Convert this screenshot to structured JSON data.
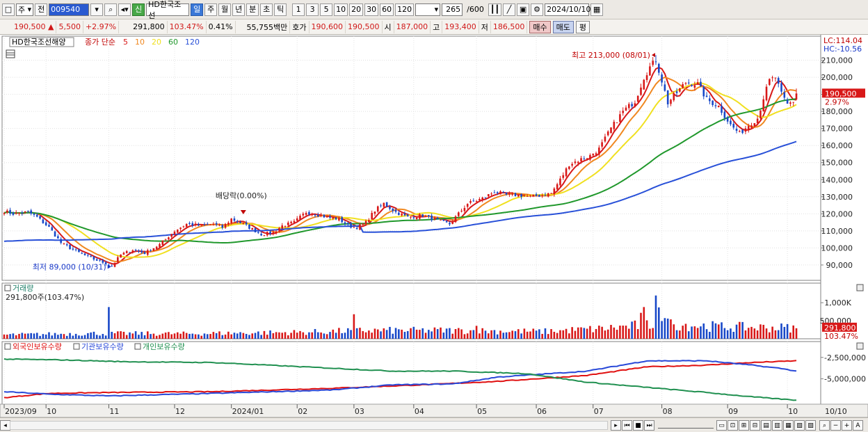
{
  "toolbar": {
    "period_sel": "주",
    "prev_label": "전",
    "code": "009540",
    "shin": "신",
    "stock_name": "HD한국조선",
    "periods": [
      "일",
      "주",
      "월",
      "년",
      "분",
      "초",
      "틱"
    ],
    "active_period": "일",
    "intervals": [
      "1",
      "3",
      "5",
      "10",
      "20",
      "30",
      "60",
      "120"
    ],
    "count": "265",
    "count_total": "/600",
    "date": "2024/10/10"
  },
  "quote": {
    "price": "190,500",
    "arrow": "▲",
    "change": "5,500",
    "change_pct": "+2.97%",
    "volume": "291,800",
    "volume_ratio": "103.47%",
    "turnover": "0.41%",
    "amount": "55,755백만",
    "bid_label": "호가",
    "bid": "190,600",
    "ask": "190,500",
    "open_label": "시",
    "open": "187,000",
    "high_label": "고",
    "high": "193,400",
    "low_label": "저",
    "low": "186,500",
    "buy": "매수",
    "sell": "매도",
    "pyeong": "평"
  },
  "price_panel": {
    "name": "HD한국조선해양",
    "ma_label": "종가 단순",
    "ma_periods": [
      "5",
      "10",
      "20",
      "60",
      "120"
    ],
    "lc": "LC:114.04",
    "hc": "HC:-10.56",
    "high_note": "최고 213,000 (08/01)",
    "low_note": "최저 89,000 (10/31)",
    "div_note": "배당락(0.00%)",
    "last_price_tag": "190,500",
    "last_pct_tag": "2.97%"
  },
  "volume_panel": {
    "title": "거래량",
    "value": "291,800주(103.47%)",
    "tag": "291,800",
    "tag_pct": "103.47%"
  },
  "holding_panel": {
    "legend": [
      "외국인보유수량",
      "기관보유수량",
      "개인보유수량"
    ]
  },
  "x_labels": [
    {
      "t": "2023/09",
      "d": 0
    },
    {
      "t": "10",
      "d": 14
    },
    {
      "t": "11",
      "d": 35
    },
    {
      "t": "12",
      "d": 57
    },
    {
      "t": "2024/01",
      "d": 76
    },
    {
      "t": "02",
      "d": 98
    },
    {
      "t": "03",
      "d": 117
    },
    {
      "t": "04",
      "d": 137
    },
    {
      "t": "05",
      "d": 158
    },
    {
      "t": "06",
      "d": 178
    },
    {
      "t": "07",
      "d": 197
    },
    {
      "t": "08",
      "d": 220
    },
    {
      "t": "09",
      "d": 242
    },
    {
      "t": "10",
      "d": 262
    }
  ],
  "last_x_label": "10/10",
  "chart_data": {
    "type": "line",
    "title": "HD한국조선해양",
    "price_axis": {
      "ticks": [
        90000,
        100000,
        110000,
        120000,
        130000,
        140000,
        150000,
        160000,
        170000,
        180000,
        190000,
        200000,
        210000
      ],
      "range": [
        81000,
        220000
      ]
    },
    "volume_axis": {
      "ticks": [
        500000,
        1000000
      ],
      "tick_labels": [
        "500,000",
        "1,000K"
      ],
      "range": [
        0,
        1350000
      ]
    },
    "holding_axis": {
      "ticks": [
        -2500000,
        -5000000
      ],
      "tick_labels": [
        "-2,500,000",
        "-5,000,000"
      ],
      "range": [
        -7800000,
        -1300000
      ]
    },
    "close_keys": [
      [
        0,
        121500
      ],
      [
        3,
        120000
      ],
      [
        8,
        121000
      ],
      [
        11,
        118000
      ],
      [
        15,
        112000
      ],
      [
        19,
        103000
      ],
      [
        24,
        98000
      ],
      [
        29,
        94000
      ],
      [
        34,
        91000
      ],
      [
        36,
        89500
      ],
      [
        39,
        96000
      ],
      [
        43,
        99000
      ],
      [
        47,
        97000
      ],
      [
        52,
        102000
      ],
      [
        57,
        110000
      ],
      [
        61,
        114000
      ],
      [
        66,
        113000
      ],
      [
        70,
        114000
      ],
      [
        73,
        112000
      ],
      [
        76,
        117000
      ],
      [
        80,
        114000
      ],
      [
        83,
        111000
      ],
      [
        86,
        108000
      ],
      [
        90,
        109000
      ],
      [
        93,
        113000
      ],
      [
        97,
        115000
      ],
      [
        101,
        121000
      ],
      [
        104,
        120000
      ],
      [
        108,
        118000
      ],
      [
        112,
        117000
      ],
      [
        115,
        113000
      ],
      [
        118,
        112000
      ],
      [
        121,
        115000
      ],
      [
        124,
        122000
      ],
      [
        127,
        126000
      ],
      [
        131,
        121000
      ],
      [
        135,
        118000
      ],
      [
        140,
        119000
      ],
      [
        145,
        116000
      ],
      [
        149,
        114000
      ],
      [
        152,
        120000
      ],
      [
        155,
        126000
      ],
      [
        160,
        129000
      ],
      [
        164,
        133000
      ],
      [
        168,
        131000
      ],
      [
        172,
        131000
      ],
      [
        176,
        130000
      ],
      [
        180,
        131000
      ],
      [
        183,
        132000
      ],
      [
        186,
        140000
      ],
      [
        189,
        149000
      ],
      [
        193,
        152000
      ],
      [
        196,
        154000
      ],
      [
        199,
        158000
      ],
      [
        203,
        170000
      ],
      [
        207,
        180000
      ],
      [
        211,
        186000
      ],
      [
        214,
        200000
      ],
      [
        216,
        206000
      ],
      [
        218,
        210000
      ],
      [
        220,
        198000
      ],
      [
        222,
        185000
      ],
      [
        225,
        191000
      ],
      [
        228,
        197000
      ],
      [
        232,
        196000
      ],
      [
        235,
        187000
      ],
      [
        239,
        183000
      ],
      [
        243,
        172000
      ],
      [
        246,
        167000
      ],
      [
        249,
        172000
      ],
      [
        252,
        176000
      ],
      [
        254,
        188000
      ],
      [
        256,
        198000
      ],
      [
        258,
        200000
      ],
      [
        260,
        190000
      ],
      [
        262,
        184000
      ],
      [
        264,
        186000
      ],
      [
        265,
        190500
      ]
    ],
    "foreign_keys": [
      [
        0,
        -7200000
      ],
      [
        15,
        -6700000
      ],
      [
        35,
        -6600000
      ],
      [
        70,
        -6500000
      ],
      [
        110,
        -6100000
      ],
      [
        140,
        -5700000
      ],
      [
        165,
        -5300000
      ],
      [
        195,
        -4600000
      ],
      [
        215,
        -3600000
      ],
      [
        235,
        -3400000
      ],
      [
        250,
        -3100000
      ],
      [
        265,
        -2900000
      ]
    ],
    "inst_keys": [
      [
        0,
        -6500000
      ],
      [
        15,
        -6800000
      ],
      [
        35,
        -7000000
      ],
      [
        70,
        -6700000
      ],
      [
        110,
        -6300000
      ],
      [
        130,
        -5700000
      ],
      [
        150,
        -5600000
      ],
      [
        165,
        -4800000
      ],
      [
        195,
        -4100000
      ],
      [
        215,
        -2900000
      ],
      [
        235,
        -2900000
      ],
      [
        250,
        -3400000
      ],
      [
        260,
        -3800000
      ],
      [
        265,
        -4100000
      ]
    ],
    "indiv_keys": [
      [
        0,
        -2700000
      ],
      [
        20,
        -2800000
      ],
      [
        40,
        -3000000
      ],
      [
        70,
        -3100000
      ],
      [
        100,
        -3600000
      ],
      [
        130,
        -4100000
      ],
      [
        150,
        -4100000
      ],
      [
        175,
        -4400000
      ],
      [
        195,
        -5400000
      ],
      [
        215,
        -6000000
      ],
      [
        235,
        -6600000
      ],
      [
        250,
        -7100000
      ],
      [
        265,
        -7500000
      ]
    ],
    "ma_periods": [
      5,
      10,
      20,
      60,
      120
    ],
    "ma_colors": [
      "#d81818",
      "#f08820",
      "#f0e020",
      "#20982c",
      "#2850d8"
    ],
    "up_color": "#d81818",
    "down_color": "#1848c8",
    "series_colors": {
      "foreign": "#e01010",
      "inst": "#2848d8",
      "indiv": "#209050"
    },
    "max_point": {
      "d": 218,
      "v": 213000
    },
    "min_point": {
      "d": 36,
      "v": 89000
    },
    "dividend_point": {
      "d": 80
    }
  }
}
